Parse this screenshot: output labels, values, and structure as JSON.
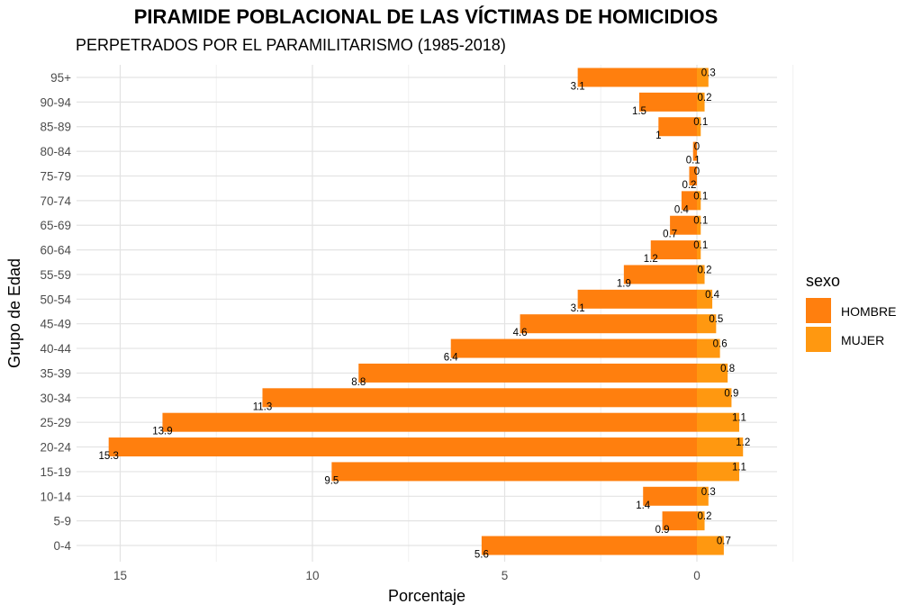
{
  "chart_data": {
    "type": "bar",
    "orientation": "horizontal",
    "title": "PIRAMIDE POBLACIONAL DE LAS VÍCTIMAS DE HOMICIDIOS",
    "subtitle": "PERPETRADOS POR EL PARAMILITARISMO (1985-2018)",
    "xlabel": "Porcentaje",
    "ylabel": "Grupo de Edad",
    "legend_title": "sexo",
    "legend_position": "right",
    "xlim": [
      16.5,
      -3
    ],
    "x_ticks": [
      15,
      10,
      5,
      0
    ],
    "grid": true,
    "categories": [
      "0-4",
      "5-9",
      "10-14",
      "15-19",
      "20-24",
      "25-29",
      "30-34",
      "35-39",
      "40-44",
      "45-49",
      "50-54",
      "55-59",
      "60-64",
      "65-69",
      "70-74",
      "75-79",
      "80-84",
      "85-89",
      "90-94",
      "95+"
    ],
    "series": [
      {
        "name": "HOMBRE",
        "color": "#FF7F0E",
        "values": [
          5.6,
          0.9,
          1.4,
          9.5,
          15.3,
          13.9,
          11.3,
          8.8,
          6.4,
          4.6,
          3.1,
          1.9,
          1.2,
          0.7,
          0.4,
          0.2,
          0.1,
          1,
          1.5,
          3.1
        ],
        "labels": [
          "5.6",
          "0.9",
          "1.4",
          "9.5",
          "15.3",
          "13.9",
          "11.3",
          "8.8",
          "6.4",
          "4.6",
          "3.1",
          "1.9",
          "1.2",
          "0.7",
          "0.4",
          "0.2",
          "0.1",
          "1",
          "1.5",
          "3.1"
        ]
      },
      {
        "name": "MUJER",
        "color": "#FF9810",
        "values": [
          0.7,
          0.2,
          0.3,
          1.1,
          1.2,
          1.1,
          0.9,
          0.8,
          0.6,
          0.5,
          0.4,
          0.2,
          0.1,
          0.1,
          0.1,
          0,
          0,
          0.1,
          0.2,
          0.3
        ],
        "labels": [
          "0.7",
          "0.2",
          "0.3",
          "1.1",
          "1.2",
          "1.1",
          "0.9",
          "0.8",
          "0.6",
          "0.5",
          "0.4",
          "0.2",
          "0.1",
          "0.1",
          "0.1",
          "0",
          "0",
          "0.1",
          "0.2",
          "0.3"
        ]
      }
    ]
  }
}
